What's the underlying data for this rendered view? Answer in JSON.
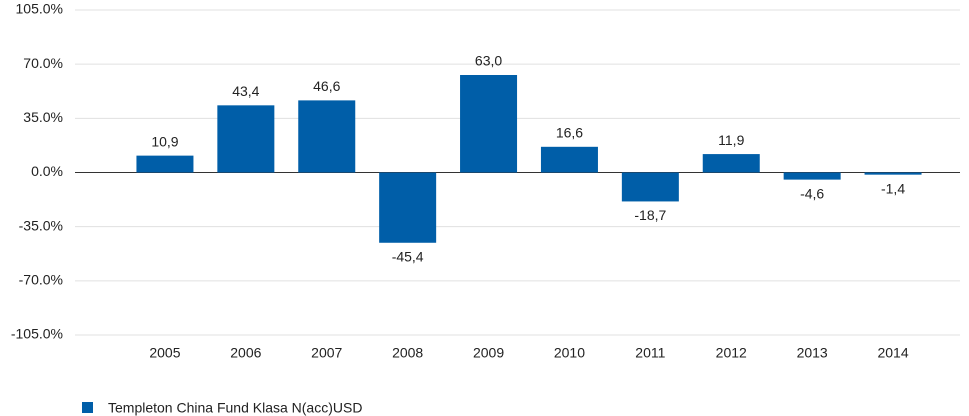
{
  "chart_data": {
    "type": "bar",
    "categories": [
      "2005",
      "2006",
      "2007",
      "2008",
      "2009",
      "2010",
      "2011",
      "2012",
      "2013",
      "2014"
    ],
    "series": [
      {
        "name": "Templeton China Fund Klasa N(acc)USD",
        "color": "#005ea8",
        "values": [
          10.9,
          43.4,
          46.6,
          -45.4,
          63.0,
          16.6,
          -18.7,
          11.9,
          -4.6,
          -1.4
        ],
        "value_labels": [
          "10,9",
          "43,4",
          "46,6",
          "-45,4",
          "63,0",
          "16,6",
          "-18,7",
          "11,9",
          "-4,6",
          "-1,4"
        ]
      }
    ],
    "ylim": [
      -105,
      105
    ],
    "yticks": [
      {
        "value": -105,
        "label": "-105.0%"
      },
      {
        "value": -70,
        "label": "-70.0%"
      },
      {
        "value": -35,
        "label": "-35.0%"
      },
      {
        "value": 0,
        "label": "0.0%"
      },
      {
        "value": 35,
        "label": "35.0%"
      },
      {
        "value": 70,
        "label": "70.0%"
      },
      {
        "value": 105,
        "label": "105.0%"
      }
    ],
    "grid": true
  }
}
